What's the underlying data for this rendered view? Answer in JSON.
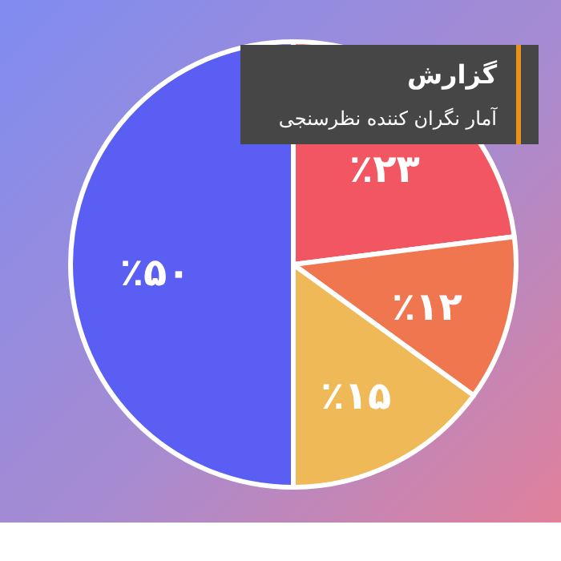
{
  "chart_data": {
    "type": "pie",
    "title": "گزارش",
    "subtitle": "آمار نگران کننده نظرسنجی",
    "categories": [
      null,
      null,
      null,
      null
    ],
    "values": [
      23,
      12,
      15,
      50
    ],
    "value_labels": [
      "٪۲۳",
      "٪۱۲",
      "٪۱۵",
      "٪۵۰"
    ],
    "colors": [
      "#f25662",
      "#f07650",
      "#f0b957",
      "#5b5ef2"
    ]
  }
}
